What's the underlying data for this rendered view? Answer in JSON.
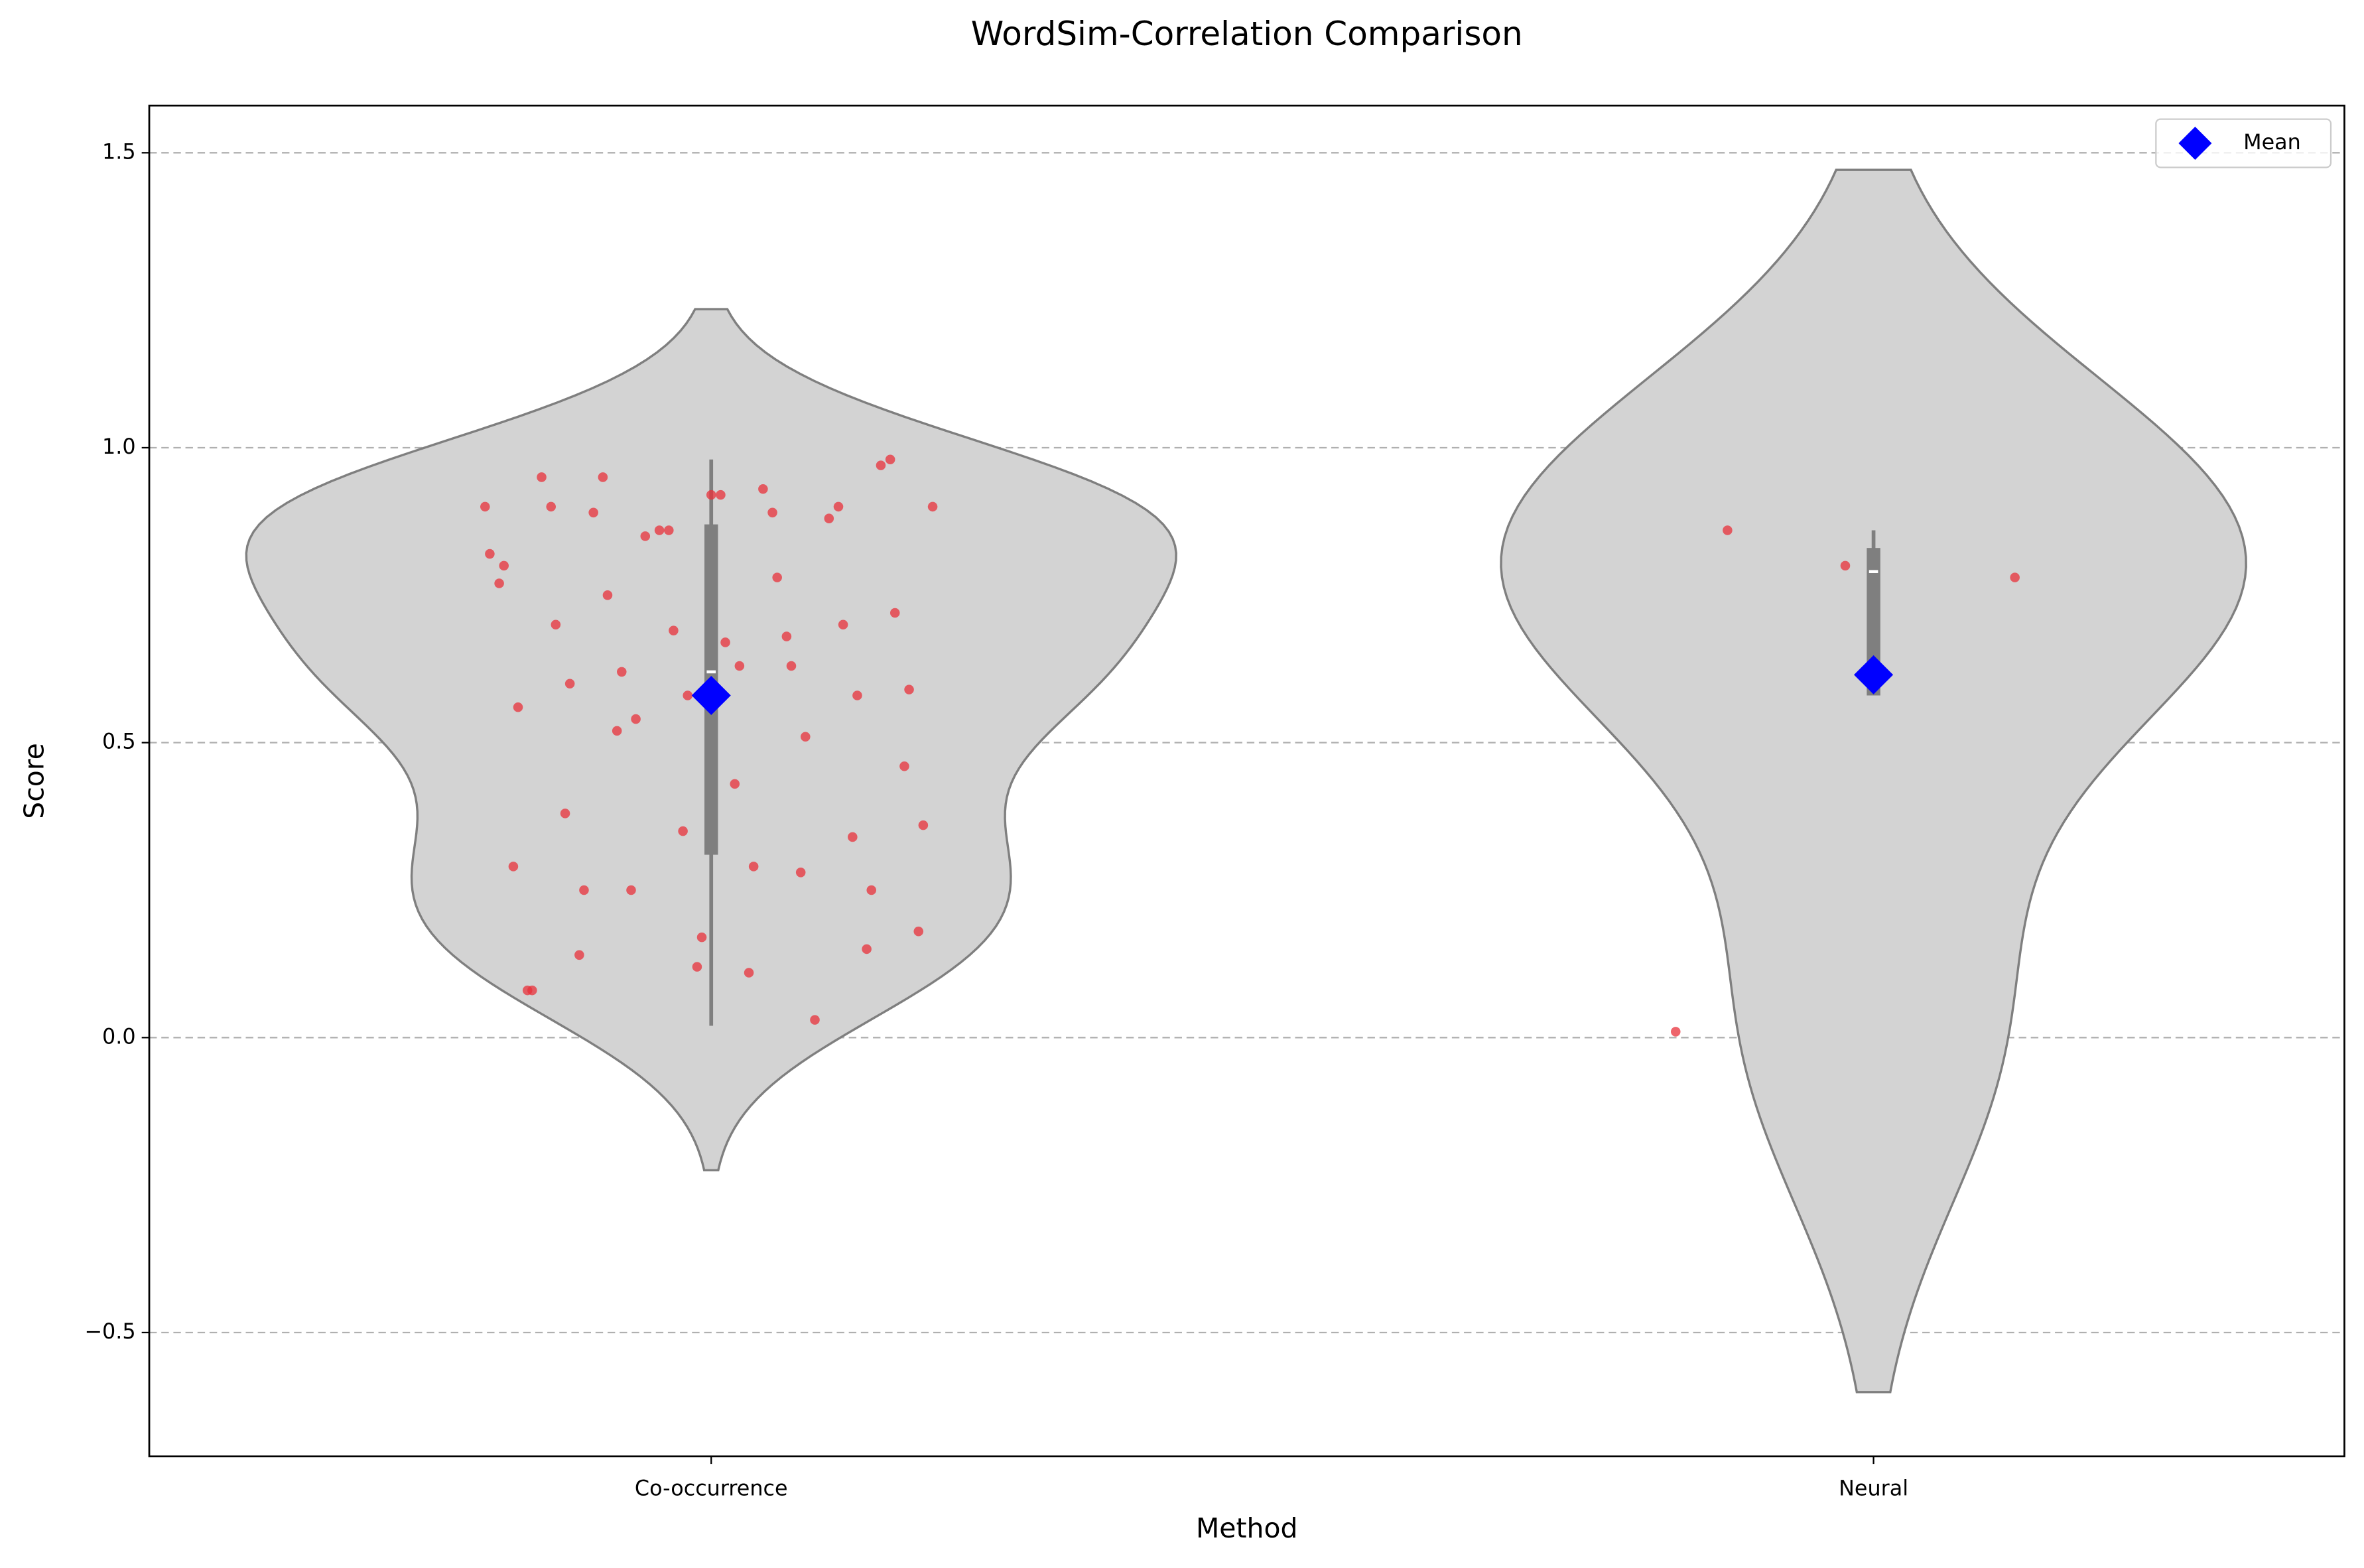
{
  "chart_data": {
    "type": "violin",
    "title": "WordSim-Correlation Comparison",
    "xlabel": "Method",
    "ylabel": "Score",
    "categories": [
      "Co-occurrence",
      "Neural"
    ],
    "violin_color": "#d3d3d3",
    "point_color": "#e8303a",
    "points": [
      [
        0.9,
        0.89,
        0.95,
        0.98,
        0.92,
        0.9,
        0.9,
        0.86,
        0.77,
        0.68,
        0.52,
        0.46,
        0.43,
        0.38,
        0.34,
        0.35,
        0.29,
        0.28,
        0.25,
        0.18,
        0.11,
        0.14,
        0.15,
        0.12,
        0.08,
        0.03,
        0.85,
        0.9,
        0.93,
        0.89,
        0.97,
        0.92,
        0.95,
        0.88,
        0.86,
        0.82,
        0.78,
        0.75,
        0.72,
        0.67,
        0.7,
        0.7,
        0.69,
        0.8,
        0.63,
        0.62,
        0.59,
        0.63,
        0.6,
        0.58,
        0.58,
        0.56,
        0.51,
        0.54,
        0.36,
        0.29,
        0.25,
        0.25,
        0.17,
        0.08
      ],
      [
        0.86,
        0.78,
        0.8,
        0.01
      ]
    ],
    "boxes": [
      {
        "whislo": 0.02,
        "q1": 0.31,
        "med": 0.62,
        "q3": 0.87,
        "whishi": 0.98
      },
      {
        "whislo": 0.58,
        "q1": 0.58,
        "med": 0.79,
        "q3": 0.83,
        "whishi": 0.86
      }
    ],
    "mean": {
      "name": "Mean",
      "color": "#0000ff",
      "values": [
        0.58,
        0.615
      ]
    },
    "ylim": [
      -0.71,
      1.58
    ],
    "yticks": [
      {
        "value": -0.5,
        "label": "−0.5"
      },
      {
        "value": 0,
        "label": "0.0"
      },
      {
        "value": 0.5,
        "label": "0.5"
      },
      {
        "value": 1,
        "label": "1.0"
      },
      {
        "value": 1.5,
        "label": "1.5"
      }
    ],
    "grid": true,
    "legend": "upper right"
  }
}
